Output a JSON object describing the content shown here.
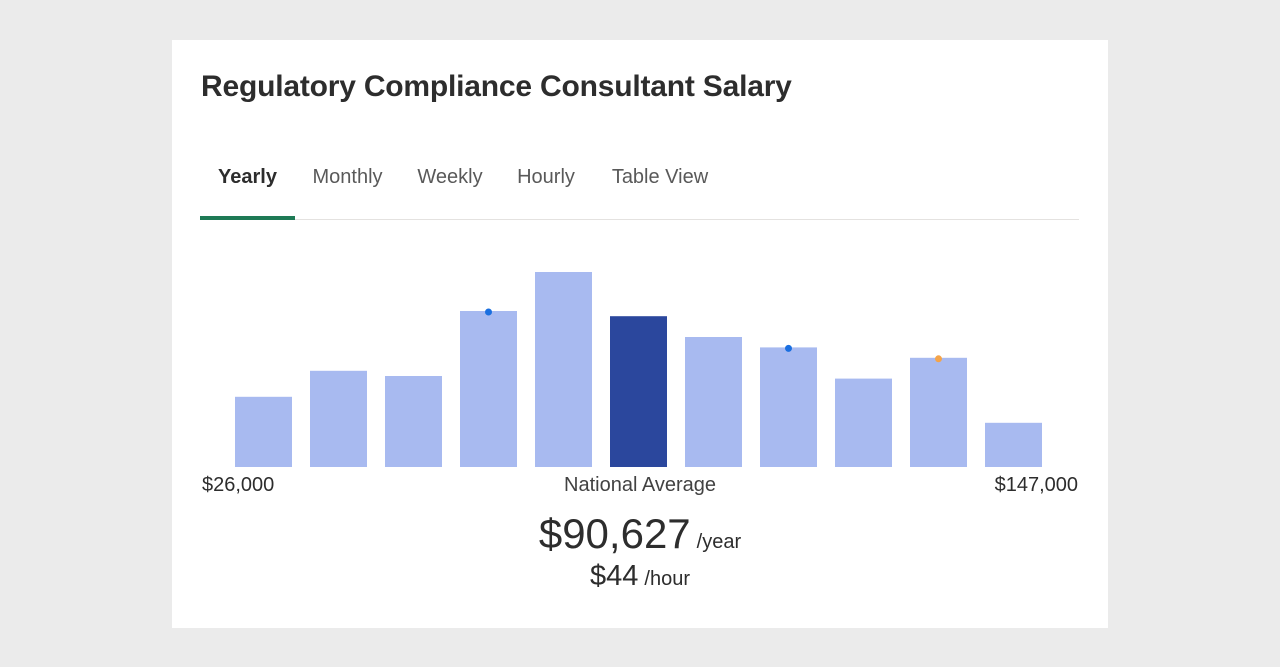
{
  "title": "Regulatory Compliance Consultant Salary",
  "tabs": [
    {
      "label": "Yearly",
      "active": true
    },
    {
      "label": "Monthly",
      "active": false
    },
    {
      "label": "Weekly",
      "active": false
    },
    {
      "label": "Hourly",
      "active": false
    },
    {
      "label": "Table View",
      "active": false
    }
  ],
  "range": {
    "min": "$26,000",
    "max": "$147,000"
  },
  "average": {
    "label": "National Average",
    "yearly": "$90,627",
    "yearly_unit": "/year",
    "hourly": "$44",
    "hourly_unit": "/hour"
  },
  "colors": {
    "accent": "#1e7a55",
    "bar": "#a8baf0",
    "bar_highlight": "#2b479d",
    "marker_blue": "#1a6fe0",
    "marker_orange": "#f4a44a"
  },
  "chart_data": {
    "type": "bar",
    "values": [
      27,
      37,
      35,
      60,
      75,
      58,
      50,
      46,
      34,
      42,
      17
    ],
    "highlight_index": 5,
    "markers": [
      {
        "index": 3,
        "color": "blue"
      },
      {
        "index": 7,
        "color": "blue"
      },
      {
        "index": 9,
        "color": "orange"
      }
    ],
    "x_min_label": "$26,000",
    "x_max_label": "$147,000",
    "ylim": [
      0,
      100
    ],
    "grid": false
  }
}
